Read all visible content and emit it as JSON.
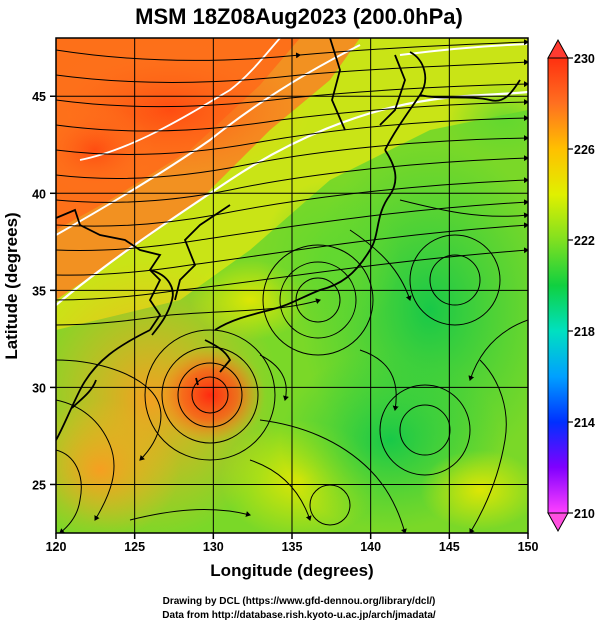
{
  "title": "MSM 18Z08Aug2023 (200.0hPa)",
  "map": {
    "xlabel": "Longitude (degrees)",
    "ylabel": "Latitude  (degrees)",
    "xlim": [
      120,
      150
    ],
    "ylim": [
      22.5,
      48
    ],
    "x_ticks": [
      "120",
      "125",
      "130",
      "135",
      "140",
      "145",
      "150"
    ],
    "y_ticks": [
      "25",
      "30",
      "35",
      "40",
      "45"
    ],
    "x_tick_values": [
      120,
      125,
      130,
      135,
      140,
      145,
      150
    ],
    "y_tick_values": [
      25,
      30,
      35,
      40,
      45
    ],
    "grid": true,
    "field": "temperature-shading with streamlines",
    "contours": "white"
  },
  "colorbar": {
    "ticks": [
      "230",
      "226",
      "222",
      "218",
      "214",
      "210"
    ],
    "tick_values": [
      230,
      226,
      222,
      218,
      214,
      210
    ],
    "min": 210,
    "max": 230,
    "colors": [
      "#ff40ff",
      "#8000ff",
      "#0030ff",
      "#00a0ff",
      "#00e0c0",
      "#10d040",
      "#80e020",
      "#e0f000",
      "#ffc000",
      "#ff7020",
      "#ff3010"
    ]
  },
  "credits": {
    "line1": "Drawing by DCL (https://www.gfd-dennou.org/library/dcl/)",
    "line2": "Data from http://database.rish.kyoto-u.ac.jp/arch/jmadata/"
  }
}
